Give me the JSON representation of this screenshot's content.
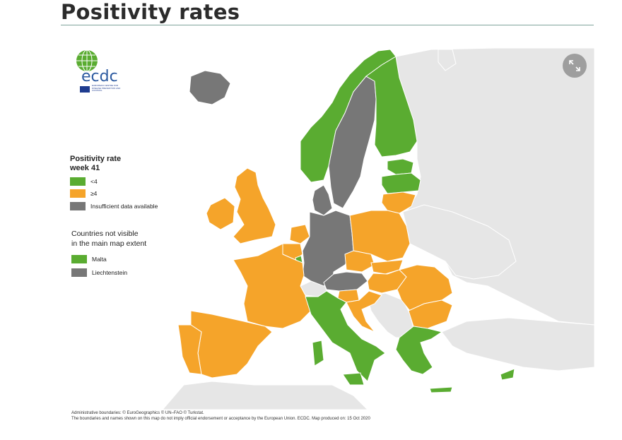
{
  "page": {
    "title": "Positivity rates"
  },
  "colors": {
    "green": "#5aac31",
    "orange": "#f5a42a",
    "grey": "#777777",
    "non_eu": "#e6e6e6",
    "sea": "#ffffff",
    "border": "#ffffff"
  },
  "logo": {
    "text": "ecdc",
    "caption": "EUROPEAN CENTRE FOR DISEASE PREVENTION AND CONTROL"
  },
  "legend": {
    "title_line1": "Positivity rate",
    "title_line2": "week 41",
    "items": [
      {
        "label": "<4",
        "color": "#5aac31"
      },
      {
        "label": "≥4",
        "color": "#f5a42a"
      },
      {
        "label": "Insufficient data available",
        "color": "#777777"
      }
    ]
  },
  "extent": {
    "title_line1": "Countries not visible",
    "title_line2": "in the main map extent",
    "items": [
      {
        "label": "Malta",
        "color": "#5aac31"
      },
      {
        "label": "Liechtenstein",
        "color": "#777777"
      }
    ]
  },
  "footer": {
    "line1": "Administrative boundaries: © EuroGeographics © UN–FAO © Turkstat.",
    "line2": "The boundaries and names shown on this map do not imply official endorsement or acceptance by the European Union. ECDC. Map produced on: 15 Oct 2020"
  },
  "map": {
    "countries": [
      {
        "name": "Iceland",
        "category": "insufficient"
      },
      {
        "name": "Norway",
        "category": "lt4"
      },
      {
        "name": "Sweden",
        "category": "insufficient"
      },
      {
        "name": "Finland",
        "category": "lt4"
      },
      {
        "name": "Estonia",
        "category": "lt4"
      },
      {
        "name": "Latvia",
        "category": "lt4"
      },
      {
        "name": "Lithuania",
        "category": "ge4"
      },
      {
        "name": "Denmark",
        "category": "insufficient"
      },
      {
        "name": "Ireland",
        "category": "ge4"
      },
      {
        "name": "United Kingdom",
        "category": "ge4"
      },
      {
        "name": "Netherlands",
        "category": "ge4"
      },
      {
        "name": "Belgium",
        "category": "ge4"
      },
      {
        "name": "Luxembourg",
        "category": "lt4"
      },
      {
        "name": "Germany",
        "category": "insufficient"
      },
      {
        "name": "Poland",
        "category": "ge4"
      },
      {
        "name": "Czechia",
        "category": "ge4"
      },
      {
        "name": "Slovakia",
        "category": "ge4"
      },
      {
        "name": "Austria",
        "category": "insufficient"
      },
      {
        "name": "Hungary",
        "category": "ge4"
      },
      {
        "name": "Romania",
        "category": "ge4"
      },
      {
        "name": "Bulgaria",
        "category": "ge4"
      },
      {
        "name": "Slovenia",
        "category": "ge4"
      },
      {
        "name": "Croatia",
        "category": "ge4"
      },
      {
        "name": "France",
        "category": "ge4"
      },
      {
        "name": "Spain",
        "category": "ge4"
      },
      {
        "name": "Portugal",
        "category": "ge4"
      },
      {
        "name": "Italy",
        "category": "lt4"
      },
      {
        "name": "Greece",
        "category": "lt4"
      },
      {
        "name": "Cyprus",
        "category": "lt4"
      },
      {
        "name": "Malta",
        "category": "lt4"
      },
      {
        "name": "Liechtenstein",
        "category": "insufficient"
      }
    ]
  }
}
